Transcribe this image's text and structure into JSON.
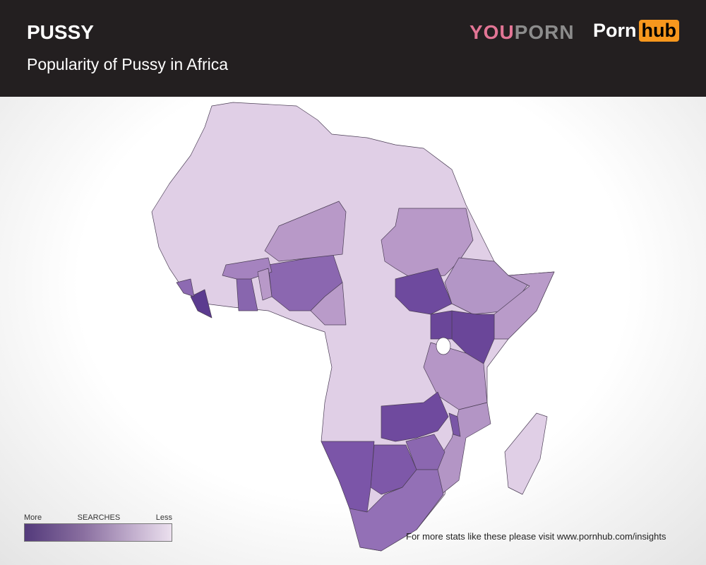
{
  "header": {
    "title": "PUSSY",
    "subtitle": "Popularity of Pussy in Africa"
  },
  "logos": {
    "youporn": [
      "YOU",
      "PORN"
    ],
    "pornhub": [
      "Porn",
      "hub"
    ]
  },
  "legend": {
    "more": "More",
    "title": "SEARCHES",
    "less": "Less",
    "color_more": "#533a7b",
    "color_less": "#ebe0ee"
  },
  "footer": "For more stats like these please visit www.pornhub.com/insights",
  "map_fills": {
    "base": "#e0cfe6",
    "Sudan": "#b899c8",
    "South Sudan": "#6e4a9e",
    "Ethiopia": "#b396c6",
    "Somalia": "#b99bc9",
    "Kenya": "#6a4699",
    "Uganda": "#6a4699",
    "Tanzania": "#b596c6",
    "Mozambique": "#b395c5",
    "Malawi": "#7a56a6",
    "Zambia": "#6f4a9e",
    "Zimbabwe": "#8b67b0",
    "Botswana": "#7e58a9",
    "Namibia": "#7b55a8",
    "South Africa": "#9370b6",
    "Nigeria": "#8b67b0",
    "Niger": "#b899c8",
    "Cameroon": "#b99bc9",
    "Ghana": "#8866ae",
    "Burkina Faso": "#a583bf",
    "Liberia": "#5b3b8f",
    "Sierra Leone": "#8d6ab2",
    "Benin": "#b899c8",
    "Madagascar": "#e0cfe6"
  }
}
